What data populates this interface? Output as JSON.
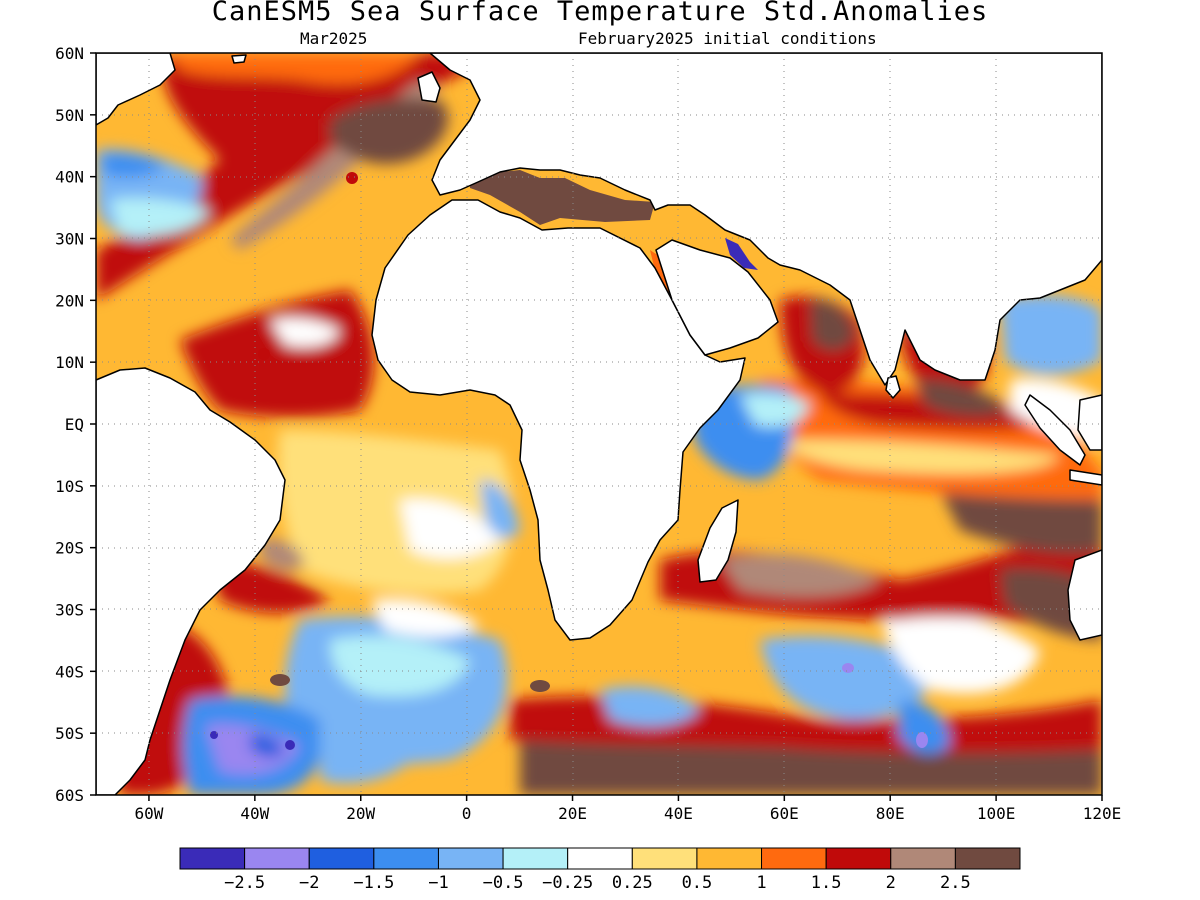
{
  "title": "CanESM5 Sea Surface Temperature Std.Anomalies",
  "subtitle_left": "Mar2025",
  "subtitle_right": "February2025 initial conditions",
  "map": {
    "projection": "equirectangular",
    "lon_range": [
      -70,
      120
    ],
    "lat_range": [
      -60,
      60
    ],
    "gridlines": "dotted",
    "lat_ticks": [
      {
        "lat": 60,
        "label": "60N"
      },
      {
        "lat": 50,
        "label": "50N"
      },
      {
        "lat": 40,
        "label": "40N"
      },
      {
        "lat": 30,
        "label": "30N"
      },
      {
        "lat": 20,
        "label": "20N"
      },
      {
        "lat": 10,
        "label": "10N"
      },
      {
        "lat": 0,
        "label": "EQ"
      },
      {
        "lat": -10,
        "label": "10S"
      },
      {
        "lat": -20,
        "label": "20S"
      },
      {
        "lat": -30,
        "label": "30S"
      },
      {
        "lat": -40,
        "label": "40S"
      },
      {
        "lat": -50,
        "label": "50S"
      },
      {
        "lat": -60,
        "label": "60S"
      }
    ],
    "lon_ticks": [
      {
        "lon": -60,
        "label": "60W"
      },
      {
        "lon": -40,
        "label": "40W"
      },
      {
        "lon": -20,
        "label": "20W"
      },
      {
        "lon": 0,
        "label": "0"
      },
      {
        "lon": 20,
        "label": "20E"
      },
      {
        "lon": 40,
        "label": "40E"
      },
      {
        "lon": 60,
        "label": "60E"
      },
      {
        "lon": 80,
        "label": "80E"
      },
      {
        "lon": 100,
        "label": "100E"
      },
      {
        "lon": 120,
        "label": "120E"
      }
    ],
    "land_color": "#ffffff",
    "coastline_color": "#000000"
  },
  "colorbar": {
    "colors": [
      "#3a2bb8",
      "#9a86f0",
      "#1f5fe0",
      "#3c8ef0",
      "#78b4f5",
      "#b4f0f8",
      "#ffffff",
      "#ffe07a",
      "#ffb833",
      "#ff6a0f",
      "#c00a0a",
      "#b08878",
      "#704a40"
    ],
    "labels": [
      "-2.5",
      "-2",
      "-1.5",
      "-1",
      "-0.5",
      "-0.25",
      "0.25",
      "0.5",
      "1",
      "1.5",
      "2",
      "2.5"
    ]
  },
  "anomaly_regions": [
    {
      "level": 2,
      "area": "eastern Mediterranean Sea"
    },
    {
      "level": 2,
      "area": "subtropical North Atlantic band 20N-40N"
    },
    {
      "level": 2,
      "area": "central and western Arabian Sea"
    },
    {
      "level": 2,
      "area": "Bay of Bengal"
    },
    {
      "level": 2,
      "area": "South Indian Ocean 15S-30S"
    },
    {
      "level": 2,
      "area": "Southern Ocean 50S-60S south of Africa"
    },
    {
      "level": 1,
      "area": "equatorial Indian Ocean"
    },
    {
      "level": 0.5,
      "area": "tropical South Atlantic"
    },
    {
      "level": -1,
      "area": "western Indian Ocean off Somalia"
    },
    {
      "level": -1,
      "area": "southwest Atlantic 40S-60S"
    },
    {
      "level": -1,
      "area": "Indian sector Southern Ocean 40S-50S"
    },
    {
      "level": -2,
      "area": "Drake Passage region 50S-60S 45W-25W"
    }
  ]
}
